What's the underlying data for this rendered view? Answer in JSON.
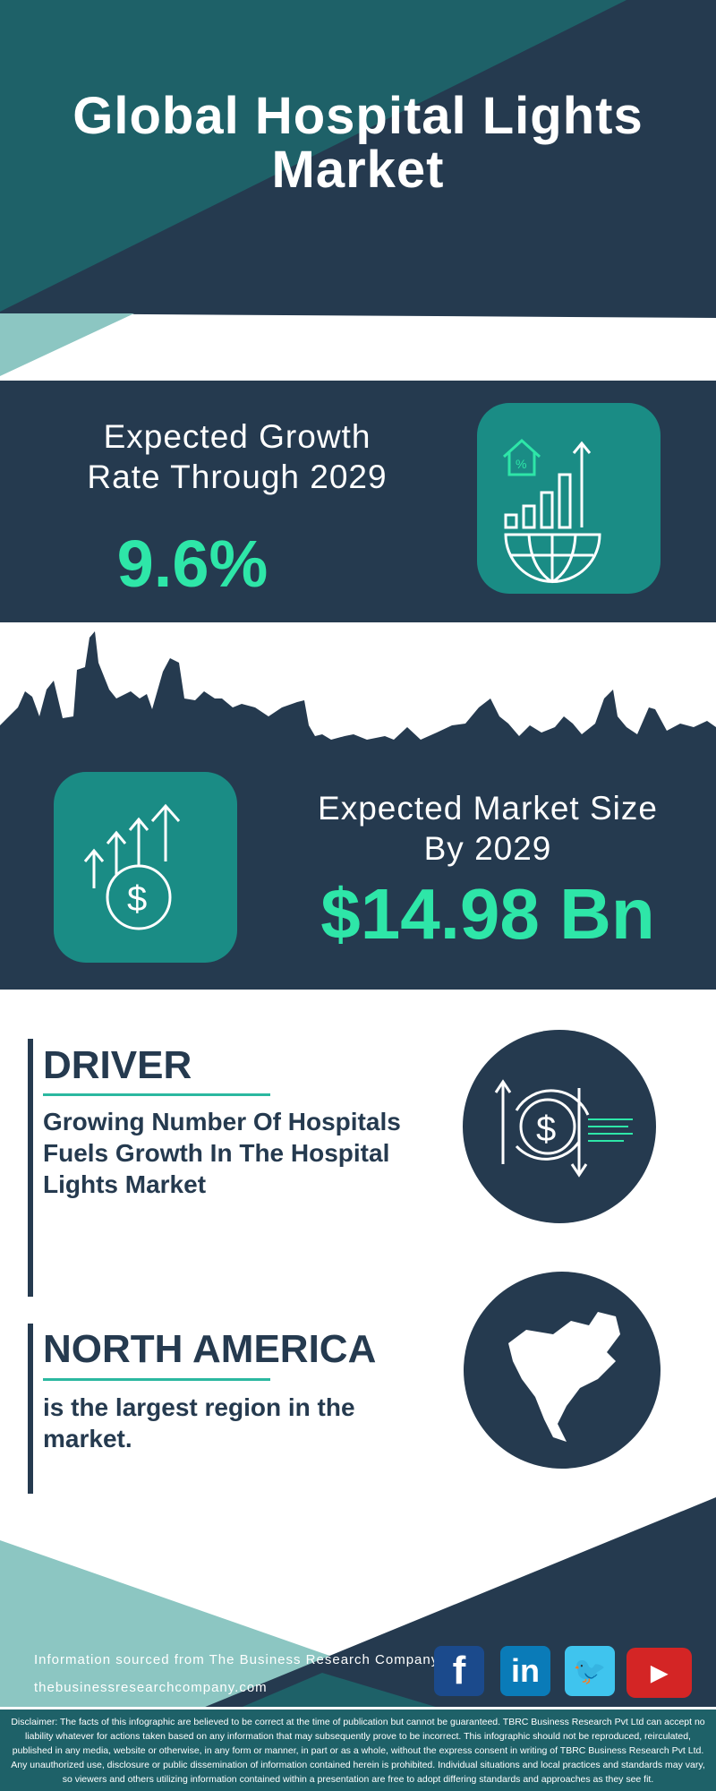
{
  "header": {
    "title_line1": "Global Hospital Lights",
    "title_line2": "Market"
  },
  "growth": {
    "label_line1": "Expected Growth",
    "label_line2": "Rate Through 2029",
    "value": "9.6%",
    "icon": "house-percent-bar-chart-globe-icon"
  },
  "market_size": {
    "label_line1": "Expected Market Size",
    "label_line2": "By 2029",
    "value": "$14.98 Bn",
    "icon": "rising-arrows-dollar-coin-icon"
  },
  "driver": {
    "heading": "DRIVER",
    "text": "Growing Number Of Hospitals Fuels Growth In The Hospital Lights Market",
    "icon": "dollar-exchange-arrows-icon"
  },
  "region": {
    "heading": "NORTH AMERICA",
    "text": "is the largest region in the market.",
    "icon": "north-america-map-icon"
  },
  "footer": {
    "source": "Information sourced from The Business Research Company",
    "website": "thebusinessresearchcompany.com",
    "social": [
      {
        "name": "facebook",
        "glyph": "f",
        "color": "#1b4a8c"
      },
      {
        "name": "linkedin",
        "glyph": "in",
        "color": "#0a7bb8"
      },
      {
        "name": "twitter",
        "glyph": "🐦",
        "color": "#3fc4ee"
      },
      {
        "name": "youtube",
        "glyph": "▶",
        "color": "#d42525"
      }
    ]
  },
  "disclaimer": "Disclaimer: The facts of this infographic are believed to be correct at the time of publication but cannot be guaranteed. TBRC Business Research Pvt Ltd can accept no liability whatever for actions taken based on any information that may subsequently prove to be incorrect. This infographic should not be reproduced, reirculated, published in any media, website or otherwise, in any form or manner, in part or as a whole, without the express consent in writing of TBRC Business Research Pvt Ltd. Any unauthorized use, disclosure or public dissemination of information contained herein is prohibited. Individual situations and local practices and standards may vary, so viewers and others utilizing information contained within a presentation are free to adopt differing standards and approaches as they see fit.",
  "colors": {
    "navy": "#253a4f",
    "teal": "#1e6168",
    "accent": "#2ee6a8",
    "icon_box": "#1a8c85",
    "light_teal": "#8cc6c2"
  }
}
